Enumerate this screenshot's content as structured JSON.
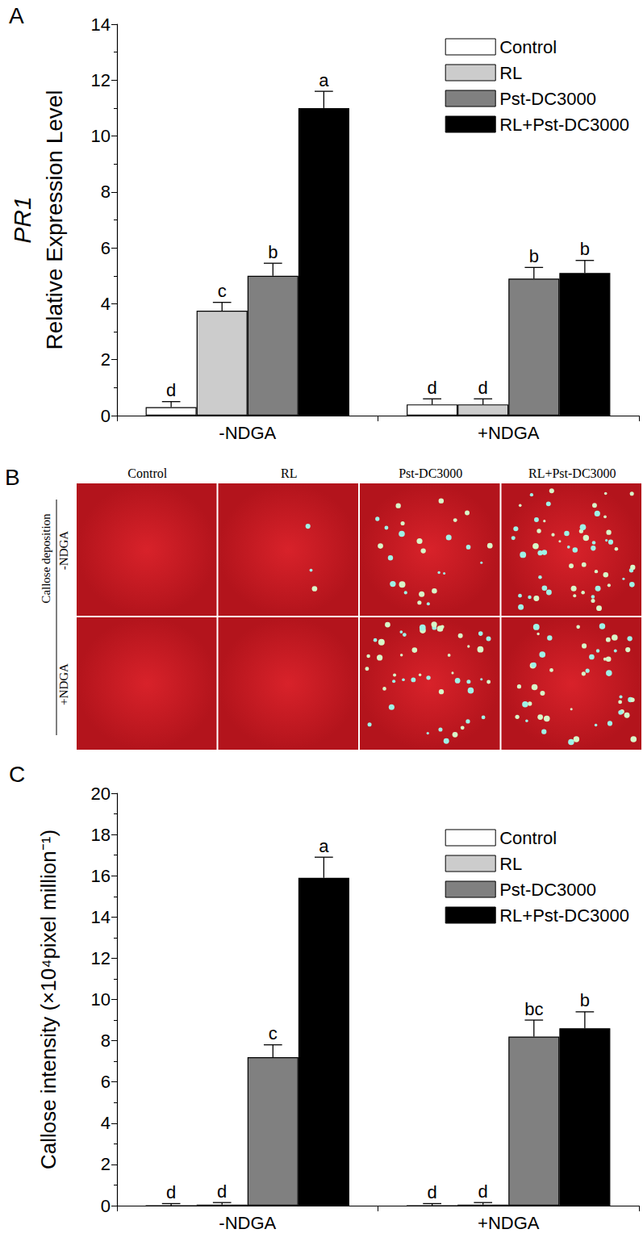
{
  "chart_data": [
    {
      "type": "bar",
      "title": "A",
      "ylabel": [
        "PR1",
        "Relative Expression Level"
      ],
      "categories": [
        "-NDGA",
        "+NDGA"
      ],
      "series": [
        {
          "name": "Control",
          "color": "#ffffff",
          "values": [
            0.3,
            0.4
          ],
          "errors": [
            0.2,
            0.2
          ],
          "significance": [
            "d",
            "d"
          ]
        },
        {
          "name": "RL",
          "color": "#cccccc",
          "values": [
            3.75,
            0.4
          ],
          "errors": [
            0.3,
            0.2
          ],
          "significance": [
            "c",
            "d"
          ]
        },
        {
          "name": "Pst-DC3000",
          "color": "#808080",
          "values": [
            5.0,
            4.9
          ],
          "errors": [
            0.45,
            0.4
          ],
          "significance": [
            "b",
            "b"
          ]
        },
        {
          "name": "RL+Pst-DC3000",
          "color": "#000000",
          "values": [
            11.0,
            5.1
          ],
          "errors": [
            0.6,
            0.45
          ],
          "significance": [
            "a",
            "b"
          ]
        }
      ],
      "ylim": [
        0,
        14
      ],
      "yticks": [
        0,
        2,
        4,
        6,
        8,
        10,
        12,
        14
      ],
      "grid": false,
      "legend": "upper right"
    },
    {
      "type": "bar",
      "title": "C",
      "ylabel": "Callose intensity (×10⁴pixel million⁻¹)",
      "categories": [
        "-NDGA",
        "+NDGA"
      ],
      "series": [
        {
          "name": "Control",
          "color": "#ffffff",
          "values": [
            0.0,
            0.0
          ],
          "errors": [
            0.1,
            0.1
          ],
          "significance": [
            "d",
            "d"
          ]
        },
        {
          "name": "RL",
          "color": "#cccccc",
          "values": [
            0.05,
            0.05
          ],
          "errors": [
            0.1,
            0.1
          ],
          "significance": [
            "d",
            "d"
          ]
        },
        {
          "name": "Pst-DC3000",
          "color": "#808080",
          "values": [
            7.2,
            8.2
          ],
          "errors": [
            0.6,
            0.8
          ],
          "significance": [
            "c",
            "bc"
          ]
        },
        {
          "name": "RL+Pst-DC3000",
          "color": "#000000",
          "values": [
            15.9,
            8.6
          ],
          "errors": [
            1.0,
            0.8
          ],
          "significance": [
            "a",
            "b"
          ]
        }
      ],
      "ylim": [
        0,
        20
      ],
      "yticks": [
        0,
        2,
        4,
        6,
        8,
        10,
        12,
        14,
        16,
        18,
        20
      ],
      "grid": false,
      "legend": "upper right"
    }
  ],
  "image_panel": {
    "title": "B",
    "columns": [
      "Control",
      "RL",
      "Pst-DC3000",
      "RL+Pst-DC3000"
    ],
    "rows": [
      "-NDGA",
      "+NDGA"
    ],
    "row_group_label": "Callose deposition"
  }
}
